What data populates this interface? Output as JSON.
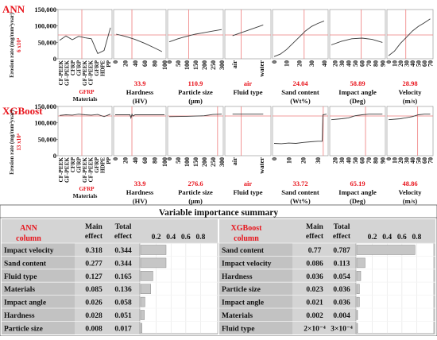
{
  "panels": [
    {
      "model": "ANN",
      "ylabel": "Erosion rate (mg/mm²year)",
      "scale_note": "6 x10⁴",
      "y_ticks": [
        "0",
        "50,000",
        "100,000",
        "150,000"
      ],
      "y_tick_values": [
        0,
        50000,
        100000,
        150000
      ],
      "ylim": [
        0,
        150000
      ],
      "charts": [
        {
          "name": "materials",
          "xlabel": "Materials",
          "selected_value": "GFRP",
          "categorical": true,
          "tick_labels": [
            "CF-PEEK",
            "GF-PEEK",
            "CFRP",
            "GFRP",
            "GF-PEEK",
            "CF-PEEK",
            "GFRP",
            "HDPE",
            "PP"
          ],
          "ref_x": 3.5,
          "x": [
            0,
            1,
            2,
            3,
            4,
            5,
            6,
            7,
            8
          ],
          "y": [
            55000,
            69000,
            57000,
            68000,
            63000,
            60000,
            12000,
            22000,
            96000
          ],
          "xlim": [
            0,
            8
          ]
        },
        {
          "name": "hardness",
          "xlabel": "Hardness (HV)",
          "selected_value": "33.9",
          "tick_labels": [
            "0",
            "20",
            "40",
            "60",
            "80",
            "100"
          ],
          "tick_values": [
            0,
            20,
            40,
            60,
            80,
            100
          ],
          "ref_x": 33.9,
          "x": [
            2,
            20,
            40,
            60,
            80,
            95
          ],
          "y": [
            75000,
            68000,
            58000,
            45000,
            30000,
            18000
          ],
          "xlim": [
            0,
            100
          ]
        },
        {
          "name": "particle-size",
          "xlabel": "Particle size (μm)",
          "selected_value": "110.9",
          "tick_labels": [
            "0",
            "50",
            "100",
            "150",
            "200",
            "250",
            "300"
          ],
          "tick_values": [
            0,
            50,
            100,
            150,
            200,
            250,
            300
          ],
          "ref_x": 110.9,
          "x": [
            0,
            50,
            100,
            150,
            200,
            250,
            300
          ],
          "y": [
            50000,
            60000,
            68000,
            75000,
            80000,
            85000,
            90000
          ],
          "xlim": [
            0,
            300
          ]
        },
        {
          "name": "fluid-type",
          "xlabel": "Fluid type",
          "selected_value": "air",
          "categorical": true,
          "tick_labels": [
            "air",
            "water"
          ],
          "ref_x": 0.28,
          "x": [
            0,
            1
          ],
          "y": [
            70000,
            105000
          ],
          "xlim": [
            -0.2,
            1.2
          ]
        },
        {
          "name": "sand-content",
          "xlabel": "Sand content (Wt%)",
          "selected_value": "24.04",
          "tick_labels": [
            "0",
            "10",
            "20",
            "30",
            "40"
          ],
          "tick_values": [
            0,
            10,
            20,
            30,
            40
          ],
          "ref_x": 24.04,
          "x": [
            0,
            5,
            10,
            15,
            20,
            25,
            30,
            35,
            40
          ],
          "y": [
            2000,
            10000,
            25000,
            45000,
            65000,
            85000,
            100000,
            110000,
            118000
          ],
          "xlim": [
            0,
            42
          ]
        },
        {
          "name": "impact-angle",
          "xlabel": "Impact angle (Deg)",
          "selected_value": "58.89",
          "tick_labels": [
            "20",
            "30",
            "40",
            "50",
            "60",
            "70",
            "80",
            "90"
          ],
          "tick_values": [
            20,
            30,
            40,
            50,
            60,
            70,
            80,
            90
          ],
          "ref_x": 58.89,
          "x": [
            15,
            30,
            45,
            60,
            75,
            90
          ],
          "y": [
            40000,
            52000,
            60000,
            62000,
            58000,
            48000
          ],
          "xlim": [
            15,
            92
          ]
        },
        {
          "name": "velocity",
          "xlabel": "Velocity (m/s)",
          "selected_value": "28.98",
          "tick_labels": [
            "0",
            "10",
            "20",
            "30",
            "40",
            "50",
            "60",
            "70"
          ],
          "tick_values": [
            0,
            10,
            20,
            30,
            40,
            50,
            60,
            70
          ],
          "ref_x": 28.98,
          "x": [
            0,
            10,
            20,
            30,
            40,
            50,
            60,
            70
          ],
          "y": [
            5000,
            20000,
            45000,
            65000,
            85000,
            100000,
            112000,
            125000
          ],
          "xlim": [
            0,
            72
          ]
        }
      ]
    },
    {
      "model": "XGBoost",
      "ylabel": "Erosion rate (mg/mm²year)",
      "scale_note": "13 x10⁴",
      "y_ticks": [
        "0",
        "50,000",
        "100,000",
        "150,000"
      ],
      "y_tick_values": [
        0,
        50000,
        100000,
        150000
      ],
      "ylim": [
        0,
        150000
      ],
      "charts": [
        {
          "name": "materials",
          "xlabel": "Materials",
          "selected_value": "GFRP",
          "categorical": true,
          "tick_labels": [
            "CF-PEEK",
            "GF-PEEK",
            "CFRP",
            "GFRP",
            "GF-PEEK",
            "CF-PEEK",
            "GFRP",
            "HDPE",
            "PP"
          ],
          "ref_x": 3.5,
          "x": [
            0,
            1,
            2,
            3,
            4,
            5,
            6,
            7,
            8
          ],
          "y": [
            126000,
            128000,
            127000,
            130000,
            128000,
            127000,
            129000,
            122000,
            130000
          ],
          "xlim": [
            0,
            8
          ]
        },
        {
          "name": "hardness",
          "xlabel": "Hardness (HV)",
          "selected_value": "33.9",
          "tick_labels": [
            "0",
            "20",
            "40",
            "60",
            "80",
            "100"
          ],
          "tick_values": [
            0,
            20,
            40,
            60,
            80,
            100
          ],
          "ref_x": 33.9,
          "x": [
            0,
            30,
            32,
            34,
            36,
            40,
            60,
            80,
            100
          ],
          "y": [
            128000,
            128000,
            118000,
            130000,
            124000,
            128000,
            128000,
            128000,
            128000
          ],
          "xlim": [
            0,
            100
          ]
        },
        {
          "name": "particle-size",
          "xlabel": "Particle size (μm)",
          "selected_value": "276.6",
          "tick_labels": [
            "0",
            "50",
            "100",
            "150",
            "200",
            "250",
            "300"
          ],
          "tick_values": [
            0,
            50,
            100,
            150,
            200,
            250,
            300
          ],
          "ref_x": 276.6,
          "x": [
            0,
            100,
            200,
            250,
            300
          ],
          "y": [
            122000,
            123000,
            125000,
            129000,
            130000
          ],
          "xlim": [
            0,
            300
          ]
        },
        {
          "name": "fluid-type",
          "xlabel": "Fluid type",
          "selected_value": "air",
          "categorical": true,
          "tick_labels": [
            "air",
            "water"
          ],
          "ref_x": 0.28,
          "x": [
            0,
            1
          ],
          "y": [
            130000,
            130000
          ],
          "xlim": [
            -0.2,
            1.2
          ]
        },
        {
          "name": "sand-content",
          "xlabel": "Sand content (Wt%)",
          "selected_value": "33.72",
          "tick_labels": [
            "0",
            "10",
            "20",
            "30"
          ],
          "tick_values": [
            0,
            10,
            20,
            30
          ],
          "ref_x": 33.72,
          "x": [
            0,
            5,
            10,
            15,
            20,
            25,
            30,
            33,
            33.5,
            36
          ],
          "y": [
            35000,
            34000,
            36000,
            35000,
            38000,
            40000,
            42000,
            42000,
            128000,
            130000
          ],
          "xlim": [
            0,
            36
          ]
        },
        {
          "name": "impact-angle",
          "xlabel": "Impact angle (Deg)",
          "selected_value": "65.19",
          "tick_labels": [
            "20",
            "30",
            "40",
            "50",
            "60",
            "70",
            "80",
            "90"
          ],
          "tick_values": [
            20,
            30,
            40,
            50,
            60,
            70,
            80,
            90
          ],
          "ref_x": 65.19,
          "x": [
            15,
            30,
            40,
            50,
            60,
            70,
            80,
            90
          ],
          "y": [
            112000,
            115000,
            118000,
            125000,
            128000,
            130000,
            130000,
            130000
          ],
          "xlim": [
            15,
            92
          ]
        },
        {
          "name": "velocity",
          "xlabel": "Velocity (m/s)",
          "selected_value": "48.86",
          "tick_labels": [
            "0",
            "10",
            "20",
            "30",
            "40",
            "50",
            "60",
            "70"
          ],
          "tick_values": [
            0,
            10,
            20,
            30,
            40,
            50,
            60,
            70
          ],
          "ref_x": 48.86,
          "x": [
            0,
            20,
            40,
            50,
            60,
            70
          ],
          "y": [
            112000,
            115000,
            122000,
            128000,
            130000,
            130000
          ],
          "xlim": [
            0,
            72
          ]
        }
      ]
    }
  ],
  "summary": {
    "title": "Variable importance summary",
    "tables": [
      {
        "model": "ANN",
        "column_label": "column",
        "headers": [
          "Main effect",
          "Total effect"
        ],
        "axis_ticks": [
          "0.2",
          "0.4",
          "0.6",
          "0.8"
        ],
        "axis_tick_values": [
          0.2,
          0.4,
          0.6,
          0.8
        ],
        "rows": [
          {
            "label": "Impact velocity",
            "main": "0.318",
            "total": "0.344",
            "value": 0.344
          },
          {
            "label": "Sand content",
            "main": "0.277",
            "total": "0.344",
            "value": 0.344
          },
          {
            "label": "Fluid type",
            "main": "0.127",
            "total": "0.165",
            "value": 0.165
          },
          {
            "label": "Materials",
            "main": "0.085",
            "total": "0.136",
            "value": 0.136
          },
          {
            "label": "Impact angle",
            "main": "0.026",
            "total": "0.058",
            "value": 0.058
          },
          {
            "label": "Hardness",
            "main": "0.028",
            "total": "0.051",
            "value": 0.051
          },
          {
            "label": "Particle size",
            "main": "0.008",
            "total": "0.017",
            "value": 0.017
          }
        ]
      },
      {
        "model": "XGBoost",
        "column_label": "column",
        "headers": [
          "Main effect",
          "Total effect"
        ],
        "axis_ticks": [
          "0.2",
          "0.4",
          "0.6",
          "0.8"
        ],
        "axis_tick_values": [
          0.2,
          0.4,
          0.6,
          0.8
        ],
        "rows": [
          {
            "label": "Sand content",
            "main": "0.77",
            "total": "0.787",
            "value": 0.787
          },
          {
            "label": "Impact velocity",
            "main": "0.086",
            "total": "0.113",
            "value": 0.113
          },
          {
            "label": "Hardness",
            "main": "0.036",
            "total": "0.054",
            "value": 0.054
          },
          {
            "label": "Particle size",
            "main": "0.023",
            "total": "0.036",
            "value": 0.036
          },
          {
            "label": "Impact angle",
            "main": "0.021",
            "total": "0.036",
            "value": 0.036
          },
          {
            "label": "Materials",
            "main": "0.002",
            "total": "0.004",
            "value": 0.004
          },
          {
            "label": "Fluid type",
            "main": "2×10⁻⁴",
            "total": "3×10⁻⁴",
            "value": 0.0003
          }
        ]
      }
    ]
  },
  "chart_data": [
    {
      "type": "line",
      "title": "ANN",
      "series": [
        {
          "name": "Materials"
        },
        {
          "name": "Hardness"
        },
        {
          "name": "Particle size"
        },
        {
          "name": "Fluid type"
        },
        {
          "name": "Sand content"
        },
        {
          "name": "Impact angle"
        },
        {
          "name": "Velocity"
        }
      ],
      "ylabel": "Erosion rate (mg/mm²year)",
      "ylim": [
        0,
        150000
      ]
    },
    {
      "type": "line",
      "title": "XGBoost",
      "series": [
        {
          "name": "Materials"
        },
        {
          "name": "Hardness"
        },
        {
          "name": "Particle size"
        },
        {
          "name": "Fluid type"
        },
        {
          "name": "Sand content"
        },
        {
          "name": "Impact angle"
        },
        {
          "name": "Velocity"
        }
      ],
      "ylabel": "Erosion rate (mg/mm²year)",
      "ylim": [
        0,
        150000
      ]
    },
    {
      "type": "bar",
      "title": "Variable importance summary",
      "series": [
        {
          "name": "ANN"
        },
        {
          "name": "XGBoost"
        }
      ]
    }
  ],
  "colors": {
    "red": "#e8141c",
    "ref_line": "#ee7c7c",
    "curve": "#3a3a3a",
    "table_bg": "#d4d4d4",
    "bar_fill": "#c6c6c6",
    "frame": "#9a9a9a"
  }
}
